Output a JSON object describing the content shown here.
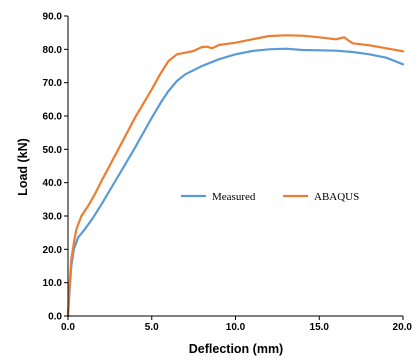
{
  "chart_data": {
    "type": "line",
    "title": "",
    "xlabel": "Deflection (mm)",
    "ylabel": "Load (kN)",
    "xlim": [
      0,
      20
    ],
    "ylim": [
      0,
      90
    ],
    "x_ticks": [
      "0.0",
      "5.0",
      "10.0",
      "15.0",
      "20.0"
    ],
    "y_ticks": [
      "0.0",
      "10.0",
      "20.0",
      "30.0",
      "40.0",
      "50.0",
      "60.0",
      "70.0",
      "80.0",
      "90.0"
    ],
    "x_tick_values": [
      0,
      5,
      10,
      15,
      20
    ],
    "y_tick_values": [
      0,
      10,
      20,
      30,
      40,
      50,
      60,
      70,
      80,
      90
    ],
    "grid": false,
    "legend_position": "center-right",
    "series": [
      {
        "name": "Measured",
        "color": "#5B9BD5",
        "points": [
          [
            0,
            0
          ],
          [
            0.1,
            8
          ],
          [
            0.2,
            15
          ],
          [
            0.35,
            20
          ],
          [
            0.6,
            23.5
          ],
          [
            1.0,
            26
          ],
          [
            1.5,
            29.5
          ],
          [
            2.0,
            33.5
          ],
          [
            3.0,
            42
          ],
          [
            4.0,
            50.5
          ],
          [
            5.0,
            59.5
          ],
          [
            5.6,
            64.5
          ],
          [
            6.0,
            67.5
          ],
          [
            6.5,
            70.5
          ],
          [
            7.0,
            72.5
          ],
          [
            8.0,
            75
          ],
          [
            9.0,
            77
          ],
          [
            10.0,
            78.5
          ],
          [
            11.0,
            79.5
          ],
          [
            12.0,
            80
          ],
          [
            13.0,
            80.2
          ],
          [
            14.0,
            79.8
          ],
          [
            15.0,
            79.7
          ],
          [
            16.0,
            79.6
          ],
          [
            17.0,
            79.2
          ],
          [
            18.0,
            78.5
          ],
          [
            19.0,
            77.5
          ],
          [
            20.0,
            75.5
          ]
        ]
      },
      {
        "name": "ABAQUS",
        "color": "#ED7D31",
        "points": [
          [
            0,
            0
          ],
          [
            0.1,
            10
          ],
          [
            0.2,
            17
          ],
          [
            0.35,
            22
          ],
          [
            0.5,
            26
          ],
          [
            0.8,
            30
          ],
          [
            1.2,
            33
          ],
          [
            1.6,
            36.5
          ],
          [
            2.0,
            40.5
          ],
          [
            3.0,
            50
          ],
          [
            4.0,
            59.5
          ],
          [
            5.0,
            68
          ],
          [
            5.5,
            72.5
          ],
          [
            6.0,
            76.5
          ],
          [
            6.5,
            78.5
          ],
          [
            7.0,
            79
          ],
          [
            7.5,
            79.5
          ],
          [
            8.0,
            80.7
          ],
          [
            8.3,
            80.8
          ],
          [
            8.6,
            80.3
          ],
          [
            9.0,
            81.3
          ],
          [
            10.0,
            82
          ],
          [
            11.0,
            83
          ],
          [
            12.0,
            84
          ],
          [
            13.0,
            84.2
          ],
          [
            14.0,
            84.1
          ],
          [
            15.0,
            83.6
          ],
          [
            16.0,
            83
          ],
          [
            16.3,
            83.4
          ],
          [
            16.5,
            83.6
          ],
          [
            16.7,
            82.8
          ],
          [
            17.0,
            81.8
          ],
          [
            18.0,
            81.2
          ],
          [
            19.0,
            80.3
          ],
          [
            20.0,
            79.4
          ]
        ]
      }
    ]
  }
}
